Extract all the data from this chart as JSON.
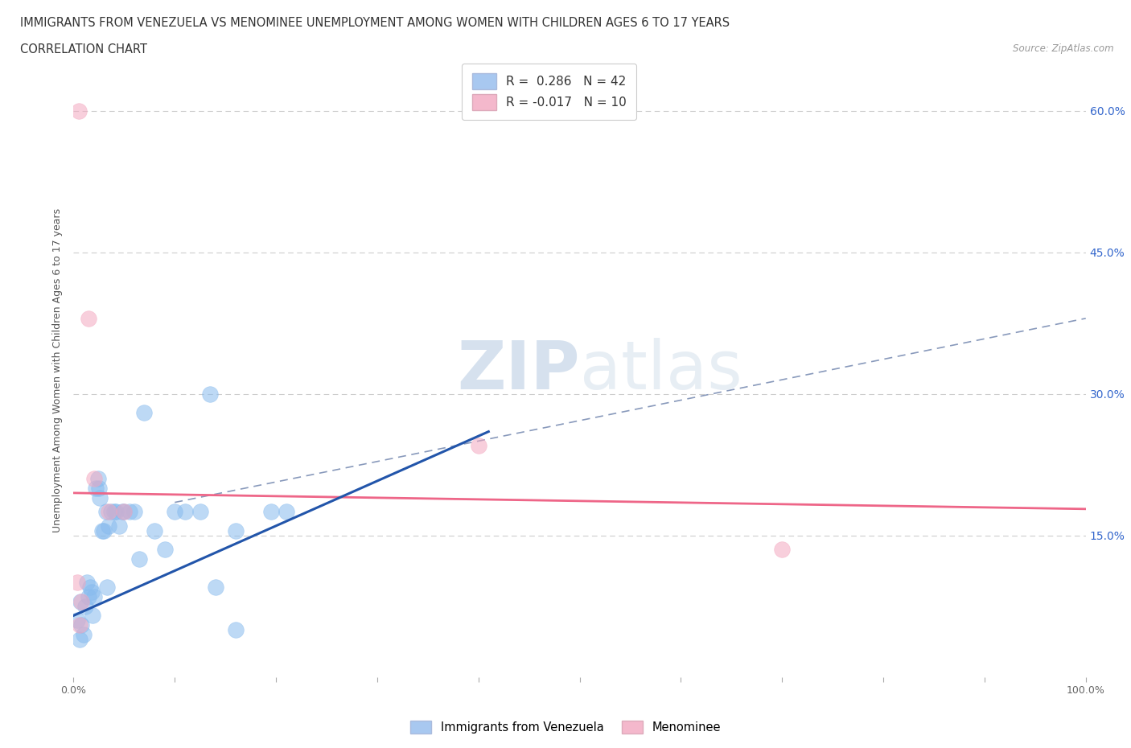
{
  "title_line1": "IMMIGRANTS FROM VENEZUELA VS MENOMINEE UNEMPLOYMENT AMONG WOMEN WITH CHILDREN AGES 6 TO 17 YEARS",
  "title_line2": "CORRELATION CHART",
  "source_text": "Source: ZipAtlas.com",
  "ylabel": "Unemployment Among Women with Children Ages 6 to 17 years",
  "xlim": [
    0.0,
    1.0
  ],
  "ylim": [
    0.0,
    0.65
  ],
  "x_ticks": [
    0.0,
    0.1,
    0.2,
    0.3,
    0.4,
    0.5,
    0.6,
    0.7,
    0.8,
    0.9,
    1.0
  ],
  "x_tick_labels": [
    "0.0%",
    "",
    "",
    "",
    "",
    "",
    "",
    "",
    "",
    "",
    "100.0%"
  ],
  "y_ticks": [
    0.0,
    0.15,
    0.3,
    0.45,
    0.6
  ],
  "y_tick_labels_left": [
    "",
    "",
    "",
    "",
    ""
  ],
  "y_tick_labels_right": [
    "",
    "15.0%",
    "30.0%",
    "45.0%",
    "60.0%"
  ],
  "watermark_top": "ZIP",
  "watermark_bot": "atlas",
  "legend_r1": "R =  0.286   N = 42",
  "legend_r2": "R = -0.017   N = 10",
  "legend_color1": "#a8c8f0",
  "legend_color2": "#f4b8cc",
  "blue_scatter_x": [
    0.004,
    0.006,
    0.007,
    0.008,
    0.01,
    0.012,
    0.013,
    0.015,
    0.016,
    0.018,
    0.019,
    0.02,
    0.022,
    0.024,
    0.025,
    0.026,
    0.028,
    0.03,
    0.032,
    0.033,
    0.035,
    0.037,
    0.04,
    0.042,
    0.045,
    0.048,
    0.05,
    0.055,
    0.06,
    0.065,
    0.07,
    0.08,
    0.09,
    0.1,
    0.11,
    0.125,
    0.14,
    0.16,
    0.195,
    0.21,
    0.135,
    0.16
  ],
  "blue_scatter_y": [
    0.06,
    0.04,
    0.08,
    0.055,
    0.045,
    0.075,
    0.1,
    0.085,
    0.095,
    0.09,
    0.065,
    0.085,
    0.2,
    0.21,
    0.2,
    0.19,
    0.155,
    0.155,
    0.175,
    0.095,
    0.16,
    0.175,
    0.175,
    0.175,
    0.16,
    0.175,
    0.175,
    0.175,
    0.175,
    0.125,
    0.28,
    0.155,
    0.135,
    0.175,
    0.175,
    0.175,
    0.095,
    0.05,
    0.175,
    0.175,
    0.3,
    0.155
  ],
  "pink_scatter_x": [
    0.004,
    0.006,
    0.008,
    0.015,
    0.02,
    0.035,
    0.05,
    0.7,
    0.4,
    0.005
  ],
  "pink_scatter_y": [
    0.1,
    0.055,
    0.08,
    0.38,
    0.21,
    0.175,
    0.175,
    0.135,
    0.245,
    0.6
  ],
  "blue_line_x": [
    0.0,
    0.41
  ],
  "blue_line_y": [
    0.065,
    0.26
  ],
  "pink_line_x": [
    0.0,
    1.0
  ],
  "pink_line_y": [
    0.195,
    0.178
  ],
  "dashed_line_x": [
    0.1,
    1.0
  ],
  "dashed_line_y": [
    0.185,
    0.38
  ],
  "blue_color": "#88bbee",
  "pink_color": "#f4a8c0",
  "blue_line_color": "#2255aa",
  "pink_line_color": "#ee6688",
  "dashed_line_color": "#8899bb",
  "right_tick_color": "#3366cc",
  "background_color": "#ffffff",
  "grid_color": "#cccccc"
}
